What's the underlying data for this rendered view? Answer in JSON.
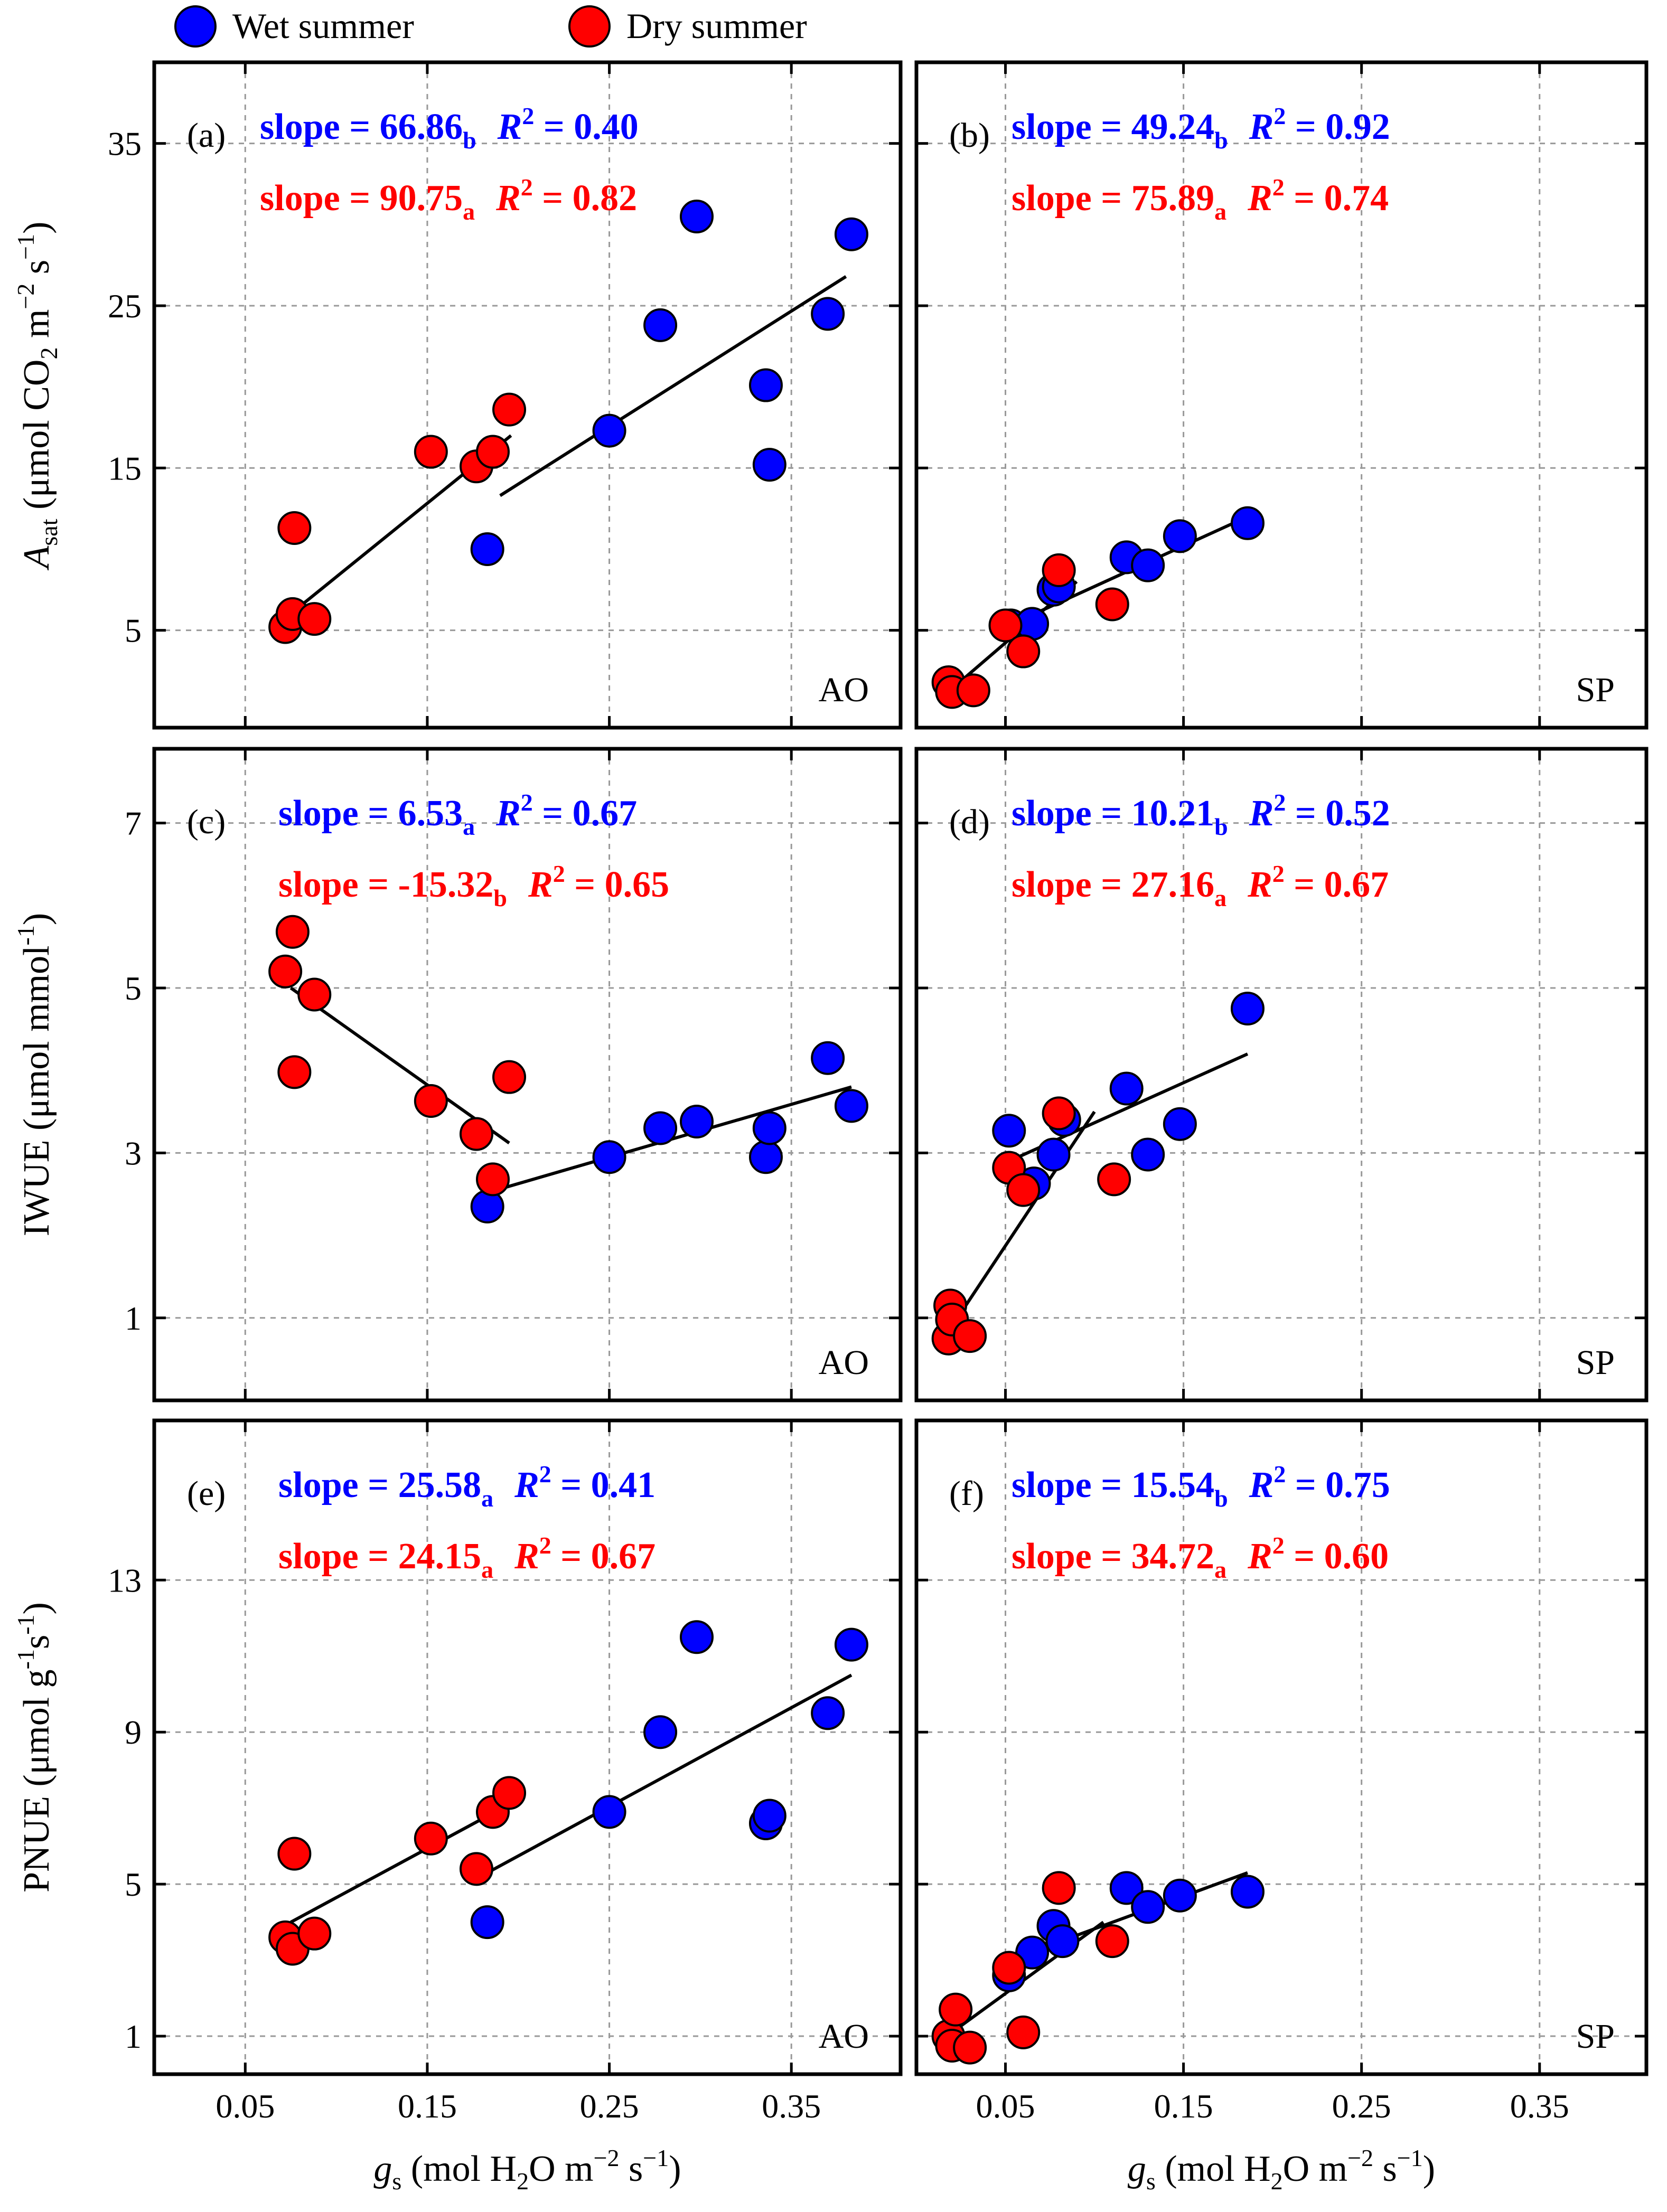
{
  "legend": {
    "items": [
      {
        "label": "Wet summer",
        "color": "#0000ff"
      },
      {
        "label": "Dry summer",
        "color": "#ff0000"
      }
    ]
  },
  "axes": {
    "x_label_left": {
      "var": "g",
      "sub": "s",
      "text": " (mol H",
      "sub2": "2",
      "text2": "O m",
      "sup": "−2",
      "text3": " s",
      "sup2": "−1",
      "text4": ")"
    },
    "x_label_right": {
      "var": "g",
      "sub": "s",
      "text": " (mol H",
      "sub2": "2",
      "text2": "O m",
      "sup": "−2",
      "text3": " s",
      "sup2": "−1",
      "text4": ")"
    },
    "row_labels": [
      {
        "var": "A",
        "sub": "sat",
        "text": " (μmol CO",
        "sub2": "2",
        "text2": " m",
        "sup": "−2",
        "text3": " s",
        "sup2": "−1",
        "text4": ")"
      },
      {
        "var": "",
        "sub": "",
        "text": "IWUE (μmol mmol",
        "sub2": "",
        "text2": "",
        "sup": "-1",
        "text3": ")",
        "sup2": "",
        "text4": ""
      },
      {
        "var": "",
        "sub": "",
        "text": "PNUE (μmol g",
        "sub2": "",
        "text2": "",
        "sup": "-1",
        "text3": "s",
        "sup2": "-1",
        "text4": ")"
      }
    ]
  },
  "colors": {
    "wet": "#0000ff",
    "dry": "#ff0000",
    "grid": "#999999"
  },
  "chart_data": [
    {
      "type": "scatter",
      "panel": "(a)",
      "site": "AO",
      "xlim": [
        0,
        0.41
      ],
      "ylim": [
        -1,
        40
      ],
      "xticks": [
        "0.05",
        "0.15",
        "0.25",
        "0.35"
      ],
      "xtick_values": [
        0.05,
        0.15,
        0.25,
        0.35
      ],
      "yticks": [
        "5",
        "15",
        "25",
        "35"
      ],
      "ytick_values": [
        5,
        15,
        25,
        35
      ],
      "annotations": [
        {
          "series": "wet",
          "slope": "66.86",
          "sub": "b",
          "r2": "0.40"
        },
        {
          "series": "dry",
          "slope": "90.75",
          "sub": "a",
          "r2": "0.82"
        }
      ],
      "series": [
        {
          "name": "Wet summer",
          "color": "#0000ff",
          "x": [
            0.183,
            0.25,
            0.278,
            0.298,
            0.336,
            0.338,
            0.37,
            0.383
          ],
          "y": [
            10.0,
            17.3,
            23.8,
            30.5,
            20.1,
            15.2,
            24.5,
            29.4
          ],
          "fit": [
            [
              0.19,
              13.3
            ],
            [
              0.38,
              26.8
            ]
          ]
        },
        {
          "name": "Dry summer",
          "color": "#ff0000",
          "x": [
            0.072,
            0.076,
            0.077,
            0.088,
            0.152,
            0.177,
            0.186,
            0.195
          ],
          "y": [
            5.2,
            6.0,
            11.3,
            5.7,
            16.0,
            15.1,
            16.0,
            18.6
          ],
          "fit": [
            [
              0.077,
              6.2
            ],
            [
              0.196,
              17.0
            ]
          ]
        }
      ]
    },
    {
      "type": "scatter",
      "panel": "(b)",
      "site": "SP",
      "xlim": [
        0,
        0.41
      ],
      "ylim": [
        -1,
        40
      ],
      "xticks": [
        "0.05",
        "0.15",
        "0.25",
        "0.35"
      ],
      "xtick_values": [
        0.05,
        0.15,
        0.25,
        0.35
      ],
      "yticks": [
        "5",
        "15",
        "25",
        "35"
      ],
      "ytick_values": [
        5,
        15,
        25,
        35
      ],
      "annotations": [
        {
          "series": "wet",
          "slope": "49.24",
          "sub": "b",
          "r2": "0.92"
        },
        {
          "series": "dry",
          "slope": "75.89",
          "sub": "a",
          "r2": "0.74"
        }
      ],
      "series": [
        {
          "name": "Wet summer",
          "color": "#0000ff",
          "x": [
            0.053,
            0.065,
            0.077,
            0.08,
            0.118,
            0.13,
            0.148,
            0.186
          ],
          "y": [
            5.3,
            5.4,
            7.5,
            7.7,
            9.5,
            9.0,
            10.8,
            11.6
          ],
          "fit": [
            [
              0.052,
              5.3
            ],
            [
              0.186,
              12.0
            ]
          ]
        },
        {
          "name": "Dry summer",
          "color": "#ff0000",
          "x": [
            0.018,
            0.02,
            0.032,
            0.05,
            0.06,
            0.08,
            0.11
          ],
          "y": [
            1.8,
            1.2,
            1.3,
            5.3,
            3.7,
            8.7,
            6.6
          ],
          "fit": [
            [
              0.02,
              1.4
            ],
            [
              0.09,
              8.0
            ]
          ]
        }
      ]
    },
    {
      "type": "scatter",
      "panel": "(c)",
      "site": "AO",
      "xlim": [
        0,
        0.41
      ],
      "ylim": [
        0,
        7.9
      ],
      "xticks": [
        "0.05",
        "0.15",
        "0.25",
        "0.35"
      ],
      "xtick_values": [
        0.05,
        0.15,
        0.25,
        0.35
      ],
      "yticks": [
        "1",
        "3",
        "5",
        "7"
      ],
      "ytick_values": [
        1,
        3,
        5,
        7
      ],
      "annotations": [
        {
          "series": "wet",
          "slope": "6.53",
          "sub": "a",
          "r2": "0.67"
        },
        {
          "series": "dry",
          "slope": "-15.32",
          "sub": "b",
          "r2": "0.65"
        }
      ],
      "series": [
        {
          "name": "Wet summer",
          "color": "#0000ff",
          "x": [
            0.183,
            0.25,
            0.278,
            0.298,
            0.336,
            0.338,
            0.37,
            0.383
          ],
          "y": [
            2.35,
            2.95,
            3.3,
            3.38,
            2.95,
            3.3,
            4.15,
            3.57
          ],
          "fit": [
            [
              0.18,
              2.5
            ],
            [
              0.383,
              3.8
            ]
          ]
        },
        {
          "name": "Dry summer",
          "color": "#ff0000",
          "x": [
            0.072,
            0.076,
            0.077,
            0.088,
            0.152,
            0.177,
            0.186,
            0.195
          ],
          "y": [
            5.2,
            5.68,
            3.98,
            4.92,
            3.63,
            3.23,
            2.68,
            3.92
          ],
          "fit": [
            [
              0.075,
              5.0
            ],
            [
              0.195,
              3.12
            ]
          ]
        }
      ]
    },
    {
      "type": "scatter",
      "panel": "(d)",
      "site": "SP",
      "xlim": [
        0,
        0.41
      ],
      "ylim": [
        0,
        7.9
      ],
      "xticks": [
        "0.05",
        "0.15",
        "0.25",
        "0.35"
      ],
      "xtick_values": [
        0.05,
        0.15,
        0.25,
        0.35
      ],
      "yticks": [
        "1",
        "3",
        "5",
        "7"
      ],
      "ytick_values": [
        1,
        3,
        5,
        7
      ],
      "annotations": [
        {
          "series": "wet",
          "slope": "10.21",
          "sub": "b",
          "r2": "0.52"
        },
        {
          "series": "dry",
          "slope": "27.16",
          "sub": "a",
          "r2": "0.67"
        }
      ],
      "series": [
        {
          "name": "Wet summer",
          "color": "#0000ff",
          "x": [
            0.052,
            0.066,
            0.077,
            0.083,
            0.118,
            0.13,
            0.148,
            0.186
          ],
          "y": [
            3.27,
            2.63,
            2.98,
            3.4,
            3.78,
            2.98,
            3.35,
            4.75
          ],
          "fit": [
            [
              0.052,
              2.9
            ],
            [
              0.186,
              4.2
            ]
          ]
        },
        {
          "name": "Dry summer",
          "color": "#ff0000",
          "x": [
            0.018,
            0.019,
            0.02,
            0.03,
            0.052,
            0.06,
            0.08,
            0.111
          ],
          "y": [
            0.75,
            1.15,
            0.98,
            0.78,
            2.82,
            2.55,
            3.48,
            2.68
          ],
          "fit": [
            [
              0.02,
              0.9
            ],
            [
              0.1,
              3.5
            ]
          ]
        }
      ]
    },
    {
      "type": "scatter",
      "panel": "(e)",
      "site": "AO",
      "xlim": [
        0,
        0.41
      ],
      "ylim": [
        0,
        17.2
      ],
      "xticks": [
        "0.05",
        "0.15",
        "0.25",
        "0.35"
      ],
      "xtick_values": [
        0.05,
        0.15,
        0.25,
        0.35
      ],
      "yticks": [
        "1",
        "5",
        "9",
        "13"
      ],
      "ytick_values": [
        1,
        5,
        9,
        13
      ],
      "annotations": [
        {
          "series": "wet",
          "slope": "25.58",
          "sub": "a",
          "r2": "0.41"
        },
        {
          "series": "dry",
          "slope": "24.15",
          "sub": "a",
          "r2": "0.67"
        }
      ],
      "series": [
        {
          "name": "Wet summer",
          "color": "#0000ff",
          "x": [
            0.183,
            0.25,
            0.278,
            0.298,
            0.336,
            0.338,
            0.37,
            0.383
          ],
          "y": [
            4.0,
            6.9,
            9.0,
            11.5,
            6.6,
            6.8,
            9.5,
            11.3
          ],
          "fit": [
            [
              0.183,
              5.3
            ],
            [
              0.383,
              10.5
            ]
          ]
        },
        {
          "name": "Dry summer",
          "color": "#ff0000",
          "x": [
            0.072,
            0.076,
            0.077,
            0.088,
            0.152,
            0.177,
            0.186,
            0.195
          ],
          "y": [
            3.6,
            3.3,
            5.8,
            3.7,
            6.2,
            5.4,
            6.9,
            7.4
          ],
          "fit": [
            [
              0.075,
              4.0
            ],
            [
              0.195,
              7.1
            ]
          ]
        }
      ]
    },
    {
      "type": "scatter",
      "panel": "(f)",
      "site": "SP",
      "xlim": [
        0,
        0.41
      ],
      "ylim": [
        0,
        17.2
      ],
      "xticks": [
        "0.05",
        "0.15",
        "0.25",
        "0.35"
      ],
      "xtick_values": [
        0.05,
        0.15,
        0.25,
        0.35
      ],
      "yticks": [
        "1",
        "5",
        "9",
        "13"
      ],
      "ytick_values": [
        1,
        5,
        9,
        13
      ],
      "annotations": [
        {
          "series": "wet",
          "slope": "15.54",
          "sub": "b",
          "r2": "0.75"
        },
        {
          "series": "dry",
          "slope": "34.72",
          "sub": "a",
          "r2": "0.60"
        }
      ],
      "series": [
        {
          "name": "Wet summer",
          "color": "#0000ff",
          "x": [
            0.052,
            0.065,
            0.077,
            0.082,
            0.118,
            0.13,
            0.148,
            0.186
          ],
          "y": [
            2.6,
            3.2,
            3.9,
            3.5,
            4.9,
            4.4,
            4.7,
            4.8
          ],
          "fit": [
            [
              0.052,
              3.0
            ],
            [
              0.186,
              5.3
            ]
          ]
        },
        {
          "name": "Dry summer",
          "color": "#ff0000",
          "x": [
            0.018,
            0.02,
            0.022,
            0.03,
            0.052,
            0.06,
            0.08,
            0.11
          ],
          "y": [
            1.0,
            0.75,
            1.7,
            0.7,
            2.8,
            1.1,
            4.9,
            3.5
          ],
          "fit": [
            [
              0.02,
              1.1
            ],
            [
              0.105,
              4.0
            ]
          ]
        }
      ]
    }
  ]
}
